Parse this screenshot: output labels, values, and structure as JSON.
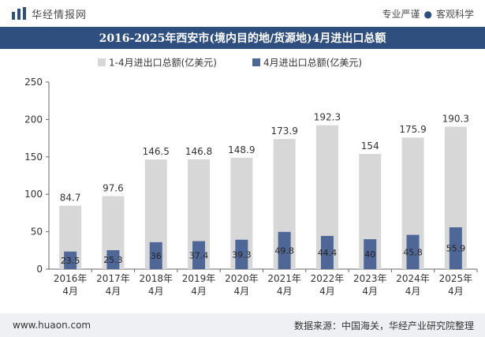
{
  "header": {
    "brand": "华经情报网",
    "tagline_left": "专业严谨",
    "tagline_sep": "●",
    "tagline_right": "客观科学"
  },
  "footer": {
    "url": "www.huaon.com",
    "source": "数据来源：中国海关，华经产业研究院整理"
  },
  "colors": {
    "title_bg": "#2f4f7e",
    "cumulative_bar": "#d7d7d7",
    "monthly_bar": "#4f6796"
  },
  "chart_data": {
    "type": "bar",
    "title": "2016-2025年西安市(境内目的地/货源地)4月进出口总额",
    "categories": [
      [
        "2016年",
        "4月"
      ],
      [
        "2017年",
        "4月"
      ],
      [
        "2018年",
        "4月"
      ],
      [
        "2019年",
        "4月"
      ],
      [
        "2020年",
        "4月"
      ],
      [
        "2021年",
        "4月"
      ],
      [
        "2022年",
        "4月"
      ],
      [
        "2023年",
        "4月"
      ],
      [
        "2024年",
        "4月"
      ],
      [
        "2025年",
        "4月"
      ]
    ],
    "series": [
      {
        "name": "1-4月进出口总额(亿美元)",
        "values": [
          84.7,
          97.6,
          146.5,
          146.8,
          148.9,
          173.9,
          192.3,
          154,
          175.9,
          190.3
        ],
        "color": "#d7d7d7"
      },
      {
        "name": "4月进出口总额(亿美元)",
        "values": [
          23.5,
          25.3,
          36,
          37.4,
          39.3,
          49.8,
          44.4,
          40,
          45.8,
          55.9
        ],
        "color": "#4f6796"
      }
    ],
    "yticks": [
      0,
      50,
      100,
      150,
      200,
      250
    ],
    "ylim": [
      0,
      250
    ],
    "legend_position": "top-center",
    "grid": false
  }
}
